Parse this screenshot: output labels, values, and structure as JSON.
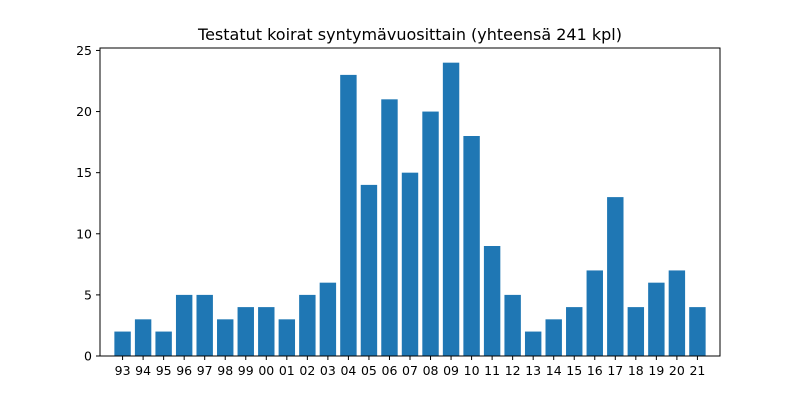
{
  "chart_data": {
    "type": "bar",
    "title": "Testatut koirat syntymävuosittain (yhteensä 241 kpl)",
    "xlabel": "",
    "ylabel": "",
    "categories": [
      "93",
      "94",
      "95",
      "96",
      "97",
      "98",
      "99",
      "00",
      "01",
      "02",
      "03",
      "04",
      "05",
      "06",
      "07",
      "08",
      "09",
      "10",
      "11",
      "12",
      "13",
      "14",
      "15",
      "16",
      "17",
      "18",
      "19",
      "20",
      "21"
    ],
    "values": [
      2,
      3,
      2,
      5,
      5,
      3,
      4,
      4,
      3,
      5,
      6,
      23,
      14,
      21,
      15,
      20,
      24,
      18,
      9,
      5,
      2,
      3,
      4,
      7,
      13,
      4,
      6,
      7,
      4
    ],
    "ylim": [
      0,
      25.2
    ],
    "yticks": [
      0,
      5,
      10,
      15,
      20,
      25
    ],
    "grid": false,
    "legend": "none",
    "bar_color": "#1f77b4"
  }
}
